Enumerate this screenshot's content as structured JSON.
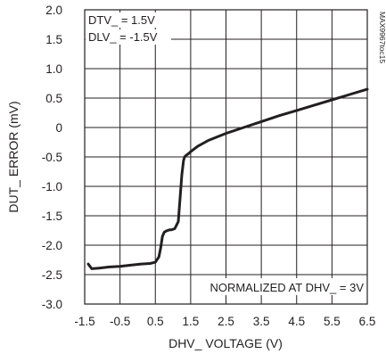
{
  "chart_data": {
    "type": "line",
    "xlabel": "DHV_ VOLTAGE (V)",
    "ylabel": "DUT_ ERROR (mV)",
    "xlim": [
      -1.5,
      6.5
    ],
    "ylim": [
      -3.0,
      2.0
    ],
    "x_ticks": [
      "-1.5",
      "-0.5",
      "0.5",
      "1.5",
      "2.5",
      "3.5",
      "4.5",
      "5.5",
      "6.5"
    ],
    "y_ticks": [
      "2.0",
      "1.5",
      "1.0",
      "0.5",
      "0",
      "-0.5",
      "-1.0",
      "-1.5",
      "-2.0",
      "-2.5",
      "-3.0"
    ],
    "grid": true,
    "annotations": {
      "dtv": "DTV_ = 1.5V",
      "dlv": "DLV_ = -1.5V",
      "normalized": "NORMALIZED AT DHV_ = 3V",
      "figure_id": "MAX9967toc15"
    },
    "series": [
      {
        "x": [
          -1.4,
          -1.3,
          -1.1,
          -0.8,
          -0.5,
          -0.2,
          0.1,
          0.35,
          0.5,
          0.6,
          0.65,
          0.7,
          0.75,
          0.8,
          0.85,
          0.9,
          0.95,
          1.05,
          1.15,
          1.2,
          1.25,
          1.3,
          1.33,
          1.36,
          1.4,
          1.45,
          1.5,
          1.7,
          2.0,
          2.5,
          3.0,
          3.5,
          4.0,
          4.5,
          5.0,
          5.5,
          6.0,
          6.5
        ],
        "y": [
          -2.32,
          -2.4,
          -2.39,
          -2.37,
          -2.36,
          -2.34,
          -2.32,
          -2.31,
          -2.29,
          -2.2,
          -2.05,
          -1.85,
          -1.78,
          -1.76,
          -1.75,
          -1.74,
          -1.74,
          -1.72,
          -1.6,
          -1.2,
          -0.8,
          -0.56,
          -0.5,
          -0.48,
          -0.46,
          -0.44,
          -0.41,
          -0.32,
          -0.22,
          -0.1,
          0.0,
          0.1,
          0.2,
          0.29,
          0.38,
          0.47,
          0.56,
          0.65
        ]
      }
    ]
  }
}
